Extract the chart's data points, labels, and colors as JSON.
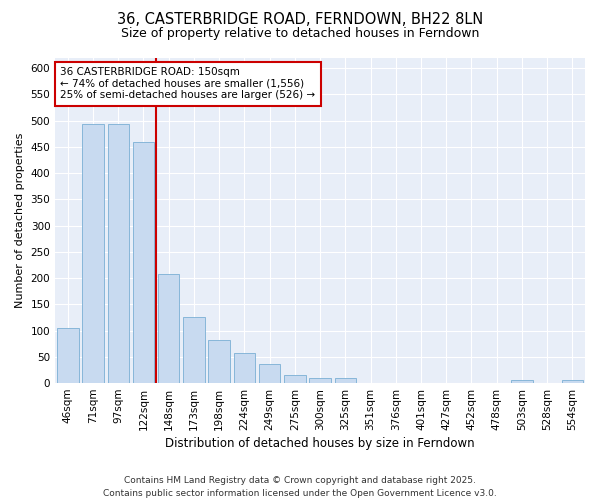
{
  "title_line1": "36, CASTERBRIDGE ROAD, FERNDOWN, BH22 8LN",
  "title_line2": "Size of property relative to detached houses in Ferndown",
  "xlabel": "Distribution of detached houses by size in Ferndown",
  "ylabel": "Number of detached properties",
  "footer": "Contains HM Land Registry data © Crown copyright and database right 2025.\nContains public sector information licensed under the Open Government Licence v3.0.",
  "categories": [
    "46sqm",
    "71sqm",
    "97sqm",
    "122sqm",
    "148sqm",
    "173sqm",
    "198sqm",
    "224sqm",
    "249sqm",
    "275sqm",
    "300sqm",
    "325sqm",
    "351sqm",
    "376sqm",
    "401sqm",
    "427sqm",
    "452sqm",
    "478sqm",
    "503sqm",
    "528sqm",
    "554sqm"
  ],
  "values": [
    105,
    493,
    493,
    460,
    207,
    125,
    82,
    58,
    37,
    15,
    10,
    10,
    0,
    0,
    0,
    0,
    0,
    0,
    5,
    0,
    5
  ],
  "bar_color": "#c8daf0",
  "bar_edgecolor": "#7aafd4",
  "fig_bg_color": "#ffffff",
  "plot_bg_color": "#e8eef8",
  "grid_color": "#ffffff",
  "vline_color": "#cc0000",
  "vline_x_index": 4,
  "annotation_text": "36 CASTERBRIDGE ROAD: 150sqm\n← 74% of detached houses are smaller (1,556)\n25% of semi-detached houses are larger (526) →",
  "annotation_box_edgecolor": "#cc0000",
  "ylim": [
    0,
    620
  ],
  "yticks": [
    0,
    50,
    100,
    150,
    200,
    250,
    300,
    350,
    400,
    450,
    500,
    550,
    600
  ],
  "title_fontsize": 10.5,
  "subtitle_fontsize": 9,
  "xlabel_fontsize": 8.5,
  "ylabel_fontsize": 8,
  "tick_fontsize": 7.5,
  "footer_fontsize": 6.5,
  "ann_fontsize": 7.5
}
